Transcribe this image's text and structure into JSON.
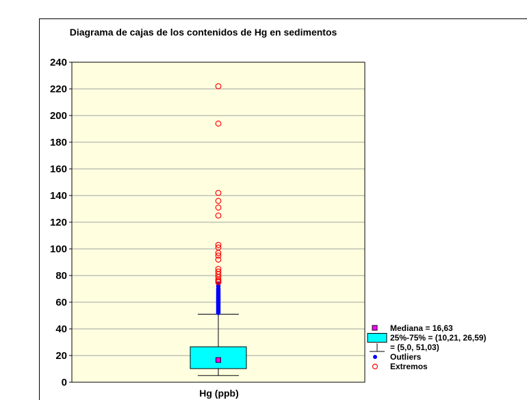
{
  "chart_data": {
    "type": "boxplot",
    "title": "Diagrama de cajas de los contenidos de Hg en sedimentos",
    "xlabel": "Hg (ppb)",
    "ylabel": "",
    "ylim": [
      0,
      240
    ],
    "yticks": [
      0,
      20,
      40,
      60,
      80,
      100,
      120,
      140,
      160,
      180,
      200,
      220,
      240
    ],
    "grid": true,
    "legend_position": "right",
    "plot_background": "#ffffe0",
    "box": {
      "q1": 10.21,
      "median": 16.63,
      "q3": 26.59,
      "whisker_low": 5.0,
      "whisker_high": 51.03,
      "box_color": "#00ffff",
      "median_color": "#ff00ff"
    },
    "outliers": {
      "color": "#0000ff",
      "values": [
        52,
        53,
        54,
        55,
        56,
        57,
        58,
        59,
        60,
        61,
        62,
        63,
        64,
        65,
        66,
        67,
        68,
        69,
        70,
        72,
        74
      ]
    },
    "extremes": {
      "color": "#ff0000",
      "values": [
        75,
        76,
        77,
        79,
        81,
        83,
        85,
        92,
        95,
        97,
        101,
        103,
        125,
        131,
        136,
        142,
        194,
        222
      ]
    },
    "legend": [
      {
        "symbol": "median",
        "label": "Mediana = 16,63"
      },
      {
        "symbol": "box",
        "label": "25%-75% = (10,21, 26,59)"
      },
      {
        "symbol": "whisker",
        "label": "= (5,0, 51,03)"
      },
      {
        "symbol": "outlier",
        "label": "Outliers"
      },
      {
        "symbol": "extreme",
        "label": "Extremos"
      }
    ]
  }
}
